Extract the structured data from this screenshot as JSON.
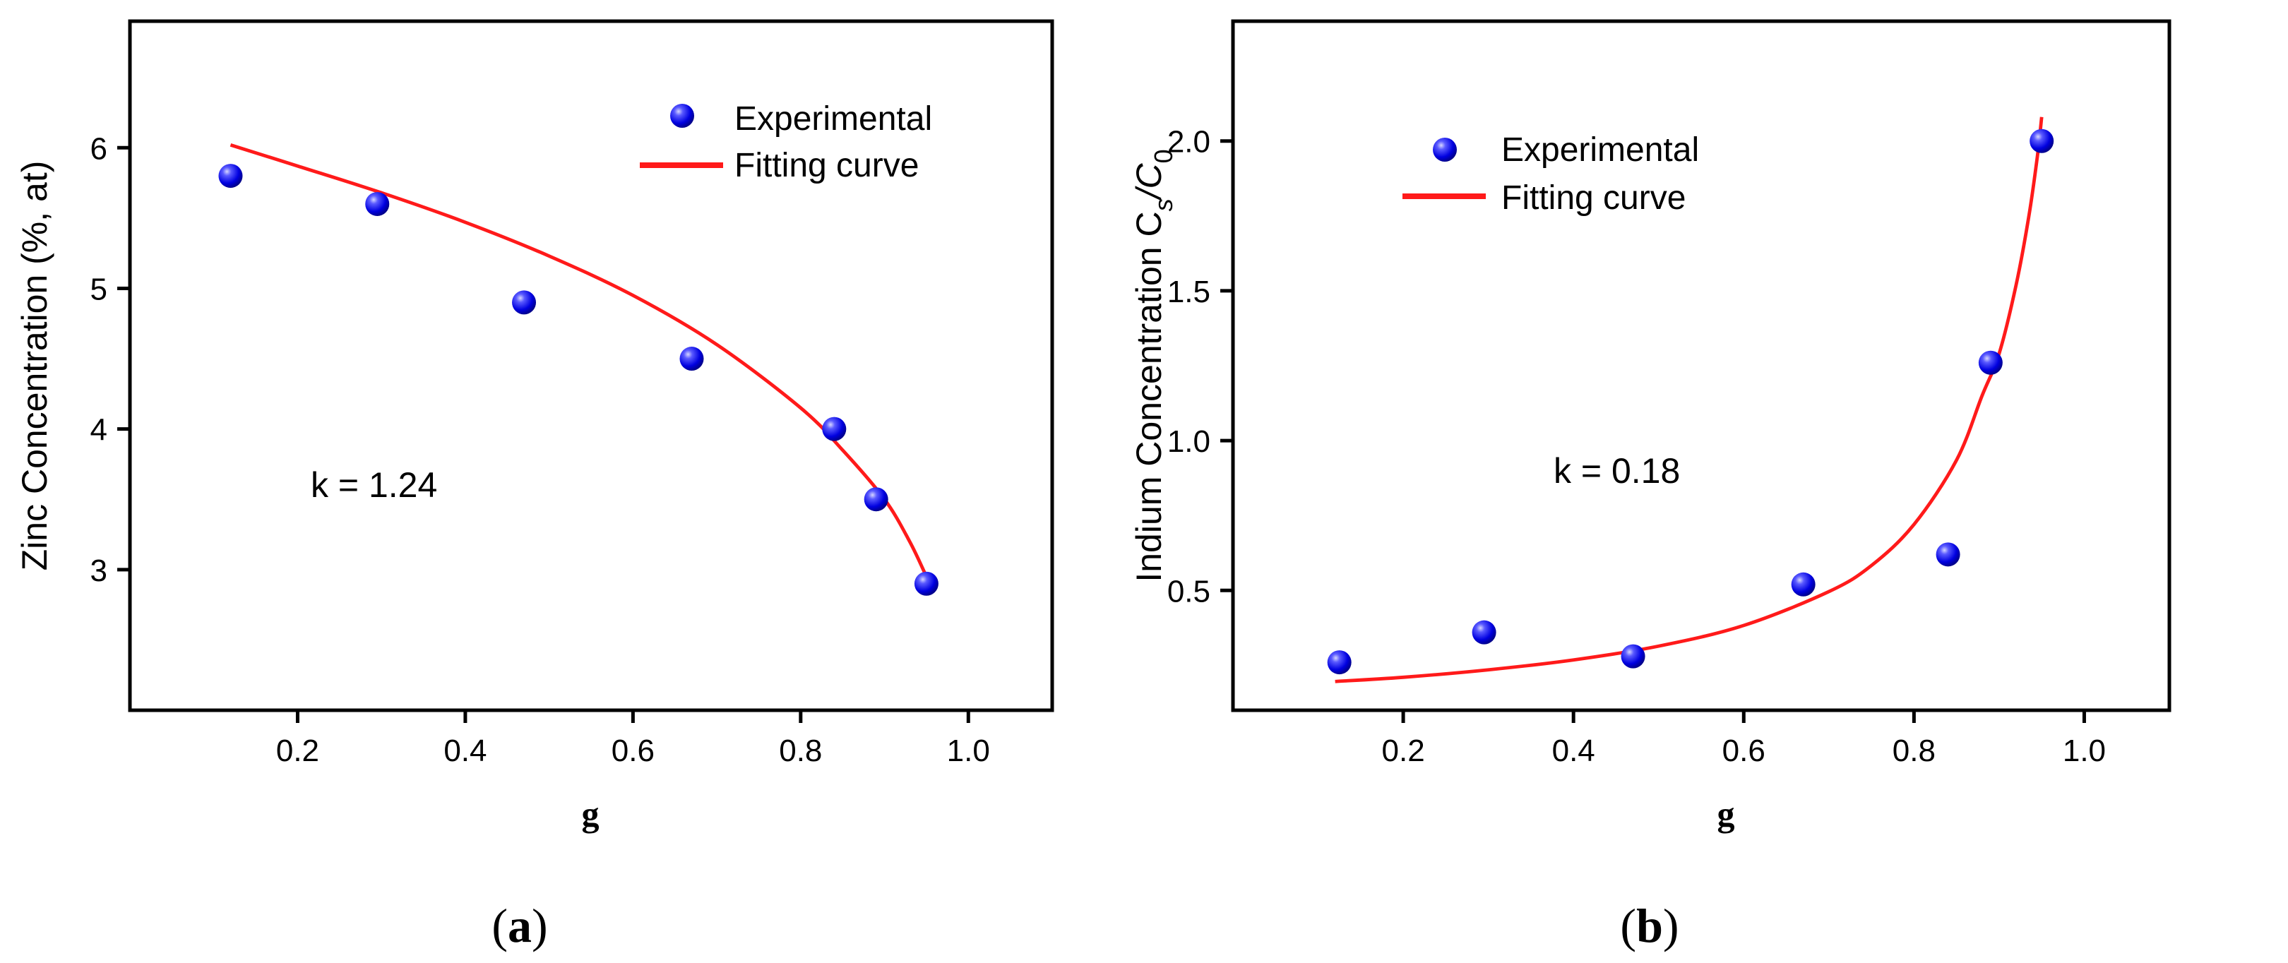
{
  "chart_data": [
    {
      "type": "scatter",
      "panel_label_open": "(",
      "panel_label": "a",
      "panel_label_close": ")",
      "xlabel": "g",
      "ylabel": "Zinc Concentration (%, at)",
      "xlim": [
        0.0,
        1.1
      ],
      "ylim": [
        2.0,
        6.9
      ],
      "xticks": [
        0.2,
        0.4,
        0.6,
        0.8,
        1.0
      ],
      "xtick_labels": [
        "0.2",
        "0.4",
        "0.6",
        "0.8",
        "1.0"
      ],
      "yticks": [
        3,
        4,
        5,
        6
      ],
      "ytick_labels": [
        "3",
        "4",
        "5",
        "6"
      ],
      "legend": [
        "Experimental",
        "Fitting curve"
      ],
      "legend_position": "top-right",
      "annotation": "k = 1.24",
      "series": [
        {
          "name": "Experimental",
          "kind": "scatter",
          "x": [
            0.12,
            0.295,
            0.47,
            0.67,
            0.84,
            0.89,
            0.95
          ],
          "y": [
            5.8,
            5.6,
            4.9,
            4.5,
            4.0,
            3.5,
            2.9
          ]
        },
        {
          "name": "Fitting curve",
          "kind": "line",
          "x": [
            0.12,
            0.2,
            0.3,
            0.4,
            0.5,
            0.6,
            0.7,
            0.8,
            0.85,
            0.9,
            0.93,
            0.95
          ],
          "y": [
            6.02,
            5.87,
            5.68,
            5.47,
            5.23,
            4.95,
            4.6,
            4.15,
            3.85,
            3.5,
            3.2,
            2.95
          ]
        }
      ]
    },
    {
      "type": "scatter",
      "panel_label_open": "(",
      "panel_label": "b",
      "panel_label_close": ")",
      "xlabel": "g",
      "ylabel": "Indium Concentration C",
      "ylabel_sub1": "s",
      "ylabel_mid": "/C",
      "ylabel_sub2": "0",
      "xlim": [
        0.0,
        1.1
      ],
      "ylim": [
        0.1,
        2.4
      ],
      "xticks": [
        0.2,
        0.4,
        0.6,
        0.8,
        1.0
      ],
      "xtick_labels": [
        "0.2",
        "0.4",
        "0.6",
        "0.8",
        "1.0"
      ],
      "yticks": [
        0.5,
        1.0,
        1.5,
        2.0
      ],
      "ytick_labels": [
        "0.5",
        "1.0",
        "1.5",
        "2.0"
      ],
      "legend": [
        "Experimental",
        "Fitting curve"
      ],
      "legend_position": "top-left",
      "annotation": "k = 0.18",
      "series": [
        {
          "name": "Experimental",
          "kind": "scatter",
          "x": [
            0.125,
            0.295,
            0.47,
            0.67,
            0.84,
            0.89,
            0.95
          ],
          "y": [
            0.26,
            0.36,
            0.28,
            0.52,
            0.62,
            1.26,
            2.0
          ]
        },
        {
          "name": "Fitting curve",
          "kind": "line",
          "x": [
            0.12,
            0.2,
            0.3,
            0.4,
            0.5,
            0.6,
            0.7,
            0.75,
            0.8,
            0.85,
            0.88,
            0.9,
            0.92,
            0.935,
            0.945,
            0.95
          ],
          "y": [
            0.196,
            0.21,
            0.235,
            0.268,
            0.314,
            0.383,
            0.496,
            0.583,
            0.72,
            0.935,
            1.15,
            1.29,
            1.52,
            1.75,
            1.95,
            2.08
          ]
        }
      ]
    }
  ]
}
